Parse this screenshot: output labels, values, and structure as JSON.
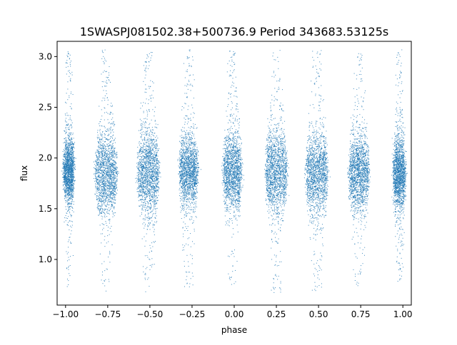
{
  "chart_data": {
    "type": "scatter",
    "title": "1SWASPJ081502.38+500736.9 Period 343683.53125s",
    "xlabel": "phase",
    "ylabel": "flux",
    "xlim": [
      -1.05,
      1.05
    ],
    "ylim": [
      0.55,
      3.15
    ],
    "xticks": [
      -1.0,
      -0.75,
      -0.5,
      -0.25,
      0.0,
      0.25,
      0.5,
      0.75,
      1.0
    ],
    "xtick_labels": [
      "−1.00",
      "−0.75",
      "−0.50",
      "−0.25",
      "0.00",
      "0.25",
      "0.50",
      "0.75",
      "1.00"
    ],
    "yticks": [
      1.0,
      1.5,
      2.0,
      2.5,
      3.0
    ],
    "ytick_labels": [
      "1.0",
      "1.5",
      "2.0",
      "2.5",
      "3.0"
    ],
    "grid": false,
    "marker_color": "#1f77b4",
    "series": [
      {
        "clusters": [
          {
            "phase_center": -0.98,
            "phase_width": 0.06,
            "flux_center": 1.88,
            "flux_spread": 0.17,
            "flux_min": 0.68,
            "flux_max": 3.07
          },
          {
            "phase_center": -0.76,
            "phase_width": 0.13,
            "flux_center": 1.85,
            "flux_spread": 0.2,
            "flux_min": 0.68,
            "flux_max": 3.07
          },
          {
            "phase_center": -0.51,
            "phase_width": 0.13,
            "flux_center": 1.85,
            "flux_spread": 0.2,
            "flux_min": 0.68,
            "flux_max": 3.07
          },
          {
            "phase_center": -0.27,
            "phase_width": 0.11,
            "flux_center": 1.87,
            "flux_spread": 0.18,
            "flux_min": 0.7,
            "flux_max": 3.07
          },
          {
            "phase_center": -0.01,
            "phase_width": 0.11,
            "flux_center": 1.86,
            "flux_spread": 0.19,
            "flux_min": 0.75,
            "flux_max": 3.07
          },
          {
            "phase_center": 0.25,
            "phase_width": 0.13,
            "flux_center": 1.85,
            "flux_spread": 0.2,
            "flux_min": 0.66,
            "flux_max": 3.07
          },
          {
            "phase_center": 0.49,
            "phase_width": 0.13,
            "flux_center": 1.85,
            "flux_spread": 0.2,
            "flux_min": 0.68,
            "flux_max": 3.07
          },
          {
            "phase_center": 0.74,
            "phase_width": 0.12,
            "flux_center": 1.86,
            "flux_spread": 0.19,
            "flux_min": 0.74,
            "flux_max": 3.07
          },
          {
            "phase_center": 0.98,
            "phase_width": 0.07,
            "flux_center": 1.85,
            "flux_spread": 0.18,
            "flux_min": 0.78,
            "flux_max": 3.07
          }
        ]
      }
    ]
  }
}
